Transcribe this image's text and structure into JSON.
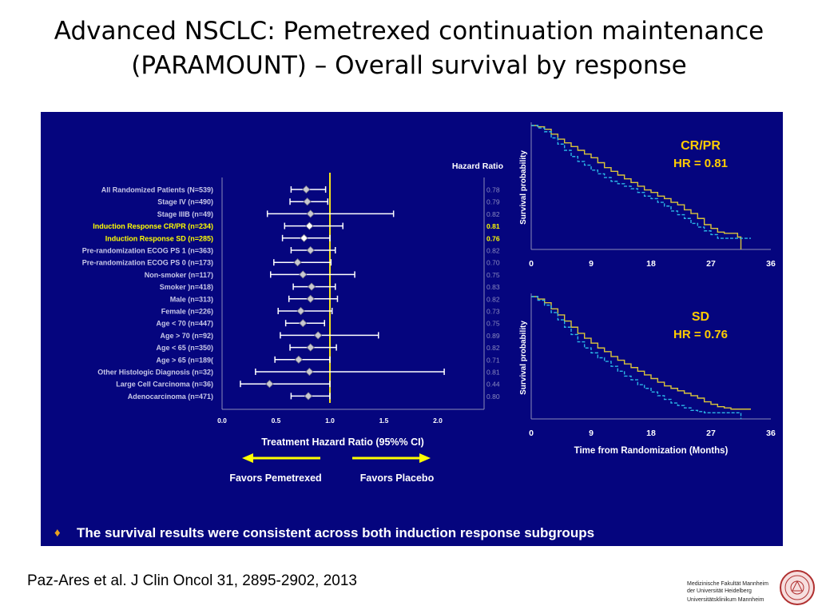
{
  "slide": {
    "title_line1": "Advanced NSCLC: Pemetrexed continuation maintenance",
    "title_line2": "(PARAMOUNT) – Overall survival by response",
    "citation": "Paz-Ares et al. J Clin Oncol 31, 2895-2902, 2013",
    "bullet": "The survival results were consistent across both induction response subgroups",
    "logo_lines": [
      "Medizinische Fakultät Mannheim",
      "der Universität Heidelberg",
      "Universitätsklinikum Mannheim"
    ]
  },
  "colors": {
    "panel_bg": "#05057e",
    "reference_line": "#f5e21b",
    "highlight_text": "#ffff00",
    "km_pemetrexed": "#d9c43a",
    "km_placebo": "#2bb6e6",
    "hr_label_text": "#ffcc00",
    "hr_value_text": "#8a8ac0"
  },
  "chart_data": [
    {
      "type": "forest",
      "title": "Hazard Ratio",
      "xlabel": "Treatment Hazard Ratio (95%% CI)",
      "xlim": [
        0.0,
        2.4
      ],
      "ticks": [
        "0.0",
        "0.5",
        "1.0",
        "1.5",
        "2.0"
      ],
      "reference_value": 1.0,
      "arrow_left": "Favors Pemetrexed",
      "arrow_right": "Favors Placebo",
      "rows": [
        {
          "label": "All Randomized Patients (N=539)",
          "hr": 0.78,
          "lo": 0.64,
          "hi": 0.96,
          "hr_text": "0.78",
          "highlight": false
        },
        {
          "label": "Stage IV (n=490)",
          "hr": 0.79,
          "lo": 0.63,
          "hi": 0.98,
          "hr_text": "0.79",
          "highlight": false
        },
        {
          "label": "Stage IIIB (n=49)",
          "hr": 0.82,
          "lo": 0.42,
          "hi": 1.59,
          "hr_text": "0.82",
          "highlight": false
        },
        {
          "label": "Induction Response CR/PR (n=234)",
          "hr": 0.81,
          "lo": 0.58,
          "hi": 1.12,
          "hr_text": "0.81",
          "highlight": true
        },
        {
          "label": "Induction Response SD (n=285)",
          "hr": 0.76,
          "lo": 0.56,
          "hi": 1.0,
          "hr_text": "0.76",
          "highlight": true
        },
        {
          "label": "Pre-randomization ECOG PS 1 (n=363)",
          "hr": 0.82,
          "lo": 0.64,
          "hi": 1.05,
          "hr_text": "0.82",
          "highlight": false
        },
        {
          "label": "Pre-randomization ECOG PS 0 (n=173)",
          "hr": 0.7,
          "lo": 0.48,
          "hi": 1.01,
          "hr_text": "0.70",
          "highlight": false
        },
        {
          "label": "Non-smoker (n=117)",
          "hr": 0.75,
          "lo": 0.45,
          "hi": 1.23,
          "hr_text": "0.75",
          "highlight": false
        },
        {
          "label": "Smoker )n=418)",
          "hr": 0.83,
          "lo": 0.66,
          "hi": 1.05,
          "hr_text": "0.83",
          "highlight": false
        },
        {
          "label": "Male (n=313)",
          "hr": 0.82,
          "lo": 0.62,
          "hi": 1.07,
          "hr_text": "0.82",
          "highlight": false
        },
        {
          "label": "Female (n=226)",
          "hr": 0.73,
          "lo": 0.52,
          "hi": 1.02,
          "hr_text": "0.73",
          "highlight": false
        },
        {
          "label": "Age < 70 (n=447)",
          "hr": 0.75,
          "lo": 0.59,
          "hi": 0.95,
          "hr_text": "0.75",
          "highlight": false
        },
        {
          "label": "Age > 70 (n=92)",
          "hr": 0.89,
          "lo": 0.54,
          "hi": 1.45,
          "hr_text": "0.89",
          "highlight": false
        },
        {
          "label": "Age < 65  (n=350)",
          "hr": 0.82,
          "lo": 0.63,
          "hi": 1.06,
          "hr_text": "0.82",
          "highlight": false
        },
        {
          "label": "Age > 65 (n=189(",
          "hr": 0.71,
          "lo": 0.49,
          "hi": 1.0,
          "hr_text": "0.71",
          "highlight": false
        },
        {
          "label": "Other Histologic Diagnosis (n=32)",
          "hr": 0.81,
          "lo": 0.31,
          "hi": 2.06,
          "hr_text": "0.81",
          "highlight": false
        },
        {
          "label": "Large Cell Carcinoma (n=36)",
          "hr": 0.44,
          "lo": 0.17,
          "hi": 1.0,
          "hr_text": "0.44",
          "highlight": false
        },
        {
          "label": "Adenocarcinoma (n=471)",
          "hr": 0.8,
          "lo": 0.64,
          "hi": 1.0,
          "hr_text": "0.80",
          "highlight": false
        }
      ]
    },
    {
      "type": "line",
      "title": "CR/PR",
      "annotation": "HR = 0.81",
      "ylabel": "Survival probability",
      "xlim": [
        0,
        36
      ],
      "x_ticks": [
        "0",
        "9",
        "18",
        "27",
        "36"
      ],
      "series": [
        {
          "points": [
            [
              0,
              1.0
            ],
            [
              1,
              0.99
            ],
            [
              2,
              0.97
            ],
            [
              3,
              0.93
            ],
            [
              4,
              0.89
            ],
            [
              5,
              0.86
            ],
            [
              6,
              0.83
            ],
            [
              7,
              0.8
            ],
            [
              8,
              0.77
            ],
            [
              9,
              0.74
            ],
            [
              10,
              0.7
            ],
            [
              11,
              0.66
            ],
            [
              12,
              0.63
            ],
            [
              13,
              0.6
            ],
            [
              14,
              0.57
            ],
            [
              15,
              0.54
            ],
            [
              16,
              0.51
            ],
            [
              17,
              0.48
            ],
            [
              18,
              0.46
            ],
            [
              19,
              0.43
            ],
            [
              20,
              0.41
            ],
            [
              21,
              0.38
            ],
            [
              22,
              0.36
            ],
            [
              23,
              0.32
            ],
            [
              24,
              0.29
            ],
            [
              25,
              0.25
            ],
            [
              26,
              0.2
            ],
            [
              27,
              0.17
            ],
            [
              28,
              0.14
            ],
            [
              29,
              0.13
            ],
            [
              30,
              0.13
            ],
            [
              31,
              0.1
            ],
            [
              31.5,
              0.0
            ]
          ]
        },
        {
          "points": [
            [
              0,
              1.0
            ],
            [
              1,
              0.98
            ],
            [
              2,
              0.95
            ],
            [
              3,
              0.9
            ],
            [
              4,
              0.85
            ],
            [
              5,
              0.8
            ],
            [
              6,
              0.75
            ],
            [
              7,
              0.71
            ],
            [
              8,
              0.68
            ],
            [
              9,
              0.64
            ],
            [
              10,
              0.61
            ],
            [
              11,
              0.58
            ],
            [
              12,
              0.55
            ],
            [
              13,
              0.53
            ],
            [
              14,
              0.51
            ],
            [
              15,
              0.49
            ],
            [
              16,
              0.46
            ],
            [
              17,
              0.43
            ],
            [
              18,
              0.41
            ],
            [
              19,
              0.38
            ],
            [
              20,
              0.35
            ],
            [
              21,
              0.31
            ],
            [
              22,
              0.28
            ],
            [
              23,
              0.25
            ],
            [
              24,
              0.21
            ],
            [
              25,
              0.18
            ],
            [
              26,
              0.15
            ],
            [
              27,
              0.12
            ],
            [
              28,
              0.09
            ],
            [
              29,
              0.09
            ],
            [
              30,
              0.09
            ],
            [
              31,
              0.09
            ],
            [
              33,
              0.09
            ]
          ]
        }
      ]
    },
    {
      "type": "line",
      "title": "SD",
      "annotation": "HR = 0.76",
      "ylabel": "Survival probability",
      "xlabel": "Time from Randomization (Months)",
      "xlim": [
        0,
        36
      ],
      "x_ticks": [
        "0",
        "9",
        "18",
        "27",
        "36"
      ],
      "series": [
        {
          "points": [
            [
              0,
              1.0
            ],
            [
              1,
              0.98
            ],
            [
              2,
              0.95
            ],
            [
              3,
              0.9
            ],
            [
              4,
              0.85
            ],
            [
              5,
              0.8
            ],
            [
              6,
              0.75
            ],
            [
              7,
              0.7
            ],
            [
              8,
              0.66
            ],
            [
              9,
              0.62
            ],
            [
              10,
              0.58
            ],
            [
              11,
              0.55
            ],
            [
              12,
              0.51
            ],
            [
              13,
              0.48
            ],
            [
              14,
              0.45
            ],
            [
              15,
              0.42
            ],
            [
              16,
              0.39
            ],
            [
              17,
              0.36
            ],
            [
              18,
              0.33
            ],
            [
              19,
              0.3
            ],
            [
              20,
              0.27
            ],
            [
              21,
              0.25
            ],
            [
              22,
              0.23
            ],
            [
              23,
              0.21
            ],
            [
              24,
              0.19
            ],
            [
              25,
              0.17
            ],
            [
              26,
              0.14
            ],
            [
              27,
              0.12
            ],
            [
              28,
              0.1
            ],
            [
              29,
              0.09
            ],
            [
              30,
              0.08
            ],
            [
              33,
              0.08
            ]
          ]
        },
        {
          "points": [
            [
              0,
              1.0
            ],
            [
              1,
              0.97
            ],
            [
              2,
              0.93
            ],
            [
              3,
              0.87
            ],
            [
              4,
              0.81
            ],
            [
              5,
              0.75
            ],
            [
              6,
              0.69
            ],
            [
              7,
              0.63
            ],
            [
              8,
              0.58
            ],
            [
              9,
              0.54
            ],
            [
              10,
              0.5
            ],
            [
              11,
              0.47
            ],
            [
              12,
              0.43
            ],
            [
              13,
              0.39
            ],
            [
              14,
              0.35
            ],
            [
              15,
              0.32
            ],
            [
              16,
              0.28
            ],
            [
              17,
              0.25
            ],
            [
              18,
              0.22
            ],
            [
              19,
              0.19
            ],
            [
              20,
              0.16
            ],
            [
              21,
              0.13
            ],
            [
              22,
              0.11
            ],
            [
              23,
              0.09
            ],
            [
              24,
              0.07
            ],
            [
              25,
              0.06
            ],
            [
              26,
              0.05
            ],
            [
              27,
              0.05
            ],
            [
              28,
              0.05
            ],
            [
              31,
              0.05
            ],
            [
              31.5,
              0.0
            ]
          ]
        }
      ]
    }
  ]
}
